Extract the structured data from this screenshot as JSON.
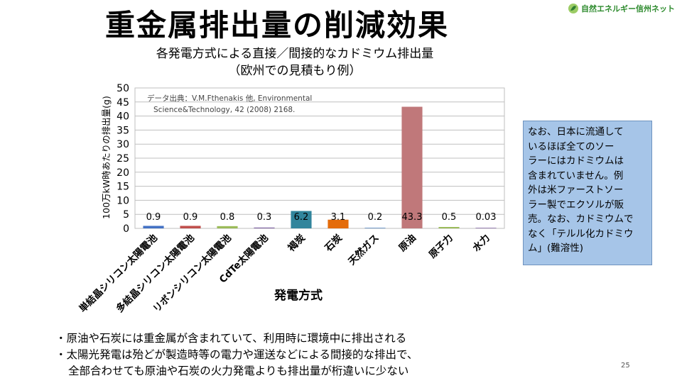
{
  "slide": {
    "title": "重金属排出量の削減効果",
    "logo_text": "自然エネルギー信州ネット",
    "page_number": "25"
  },
  "chart_data": {
    "type": "bar",
    "title_line1": "各発電方式による直接／間接的なカドミウム排出量",
    "title_line2": "（欧州での見積もり例）",
    "source_line1": "データ出典：V.M.Fthenakis 他, Environmental",
    "source_line2": "Science&Technology, 42 (2008) 2168.",
    "xlabel": "発電方式",
    "ylabel": "100万kW時あたりの排出量(g)",
    "ylim": [
      0,
      50
    ],
    "yticks": [
      0,
      5,
      10,
      15,
      20,
      25,
      30,
      35,
      40,
      45,
      50
    ],
    "grid": true,
    "categories": [
      "単結晶シリコン太陽電池",
      "多結晶シリコン太陽電池",
      "リボンシリコン太陽電池",
      "CdTe太陽電池",
      "褐炭",
      "石炭",
      "天然ガス",
      "原油",
      "原子力",
      "水力"
    ],
    "values": [
      0.9,
      0.9,
      0.8,
      0.3,
      6.2,
      3.1,
      0.2,
      43.3,
      0.5,
      0.03
    ],
    "value_labels": [
      "0.9",
      "0.9",
      "0.8",
      "0.3",
      "6.2",
      "3.1",
      "0.2",
      "43.3",
      "0.5",
      "0.03"
    ],
    "colors": [
      "#4472c4",
      "#c0504d",
      "#9bbb59",
      "#8064a2",
      "#31859c",
      "#e46c0a",
      "#4f81bd",
      "#c0787a",
      "#9bbb59",
      "#8064a2"
    ]
  },
  "callout": {
    "lines": [
      "なお、日本に流通して",
      "いるほぼ全てのソー",
      "ラーにはカドミウムは",
      "含まれていません。例",
      "外は米ファーストソー",
      "ラー製でエクソルが販",
      "売。なお、カドミウムで",
      "なく「テルル化カドミウ",
      "ム」(難溶性)"
    ]
  },
  "bullets": {
    "line1": "・原油や石炭には重金属が含まれていて、利用時に環境中に排出される",
    "line2": "・太陽光発電は殆どが製造時等の電力や運送などによる間接的な排出で、",
    "line3": "全部合わせても原油や石炭の火力発電よりも排出量が桁違いに少ない"
  }
}
